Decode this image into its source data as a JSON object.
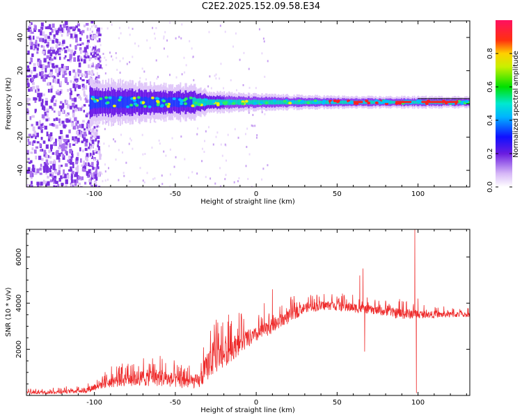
{
  "title": "C2E2.2025.152.09.58.E34",
  "colors": {
    "snr_line": "#ee2b2b",
    "axis": "#000000",
    "spec_low": "#e8c8f8",
    "spec_mid": "#7b2ee8",
    "spec_band": "#00d8c0",
    "spec_peak": "#ff2020"
  },
  "chart_data": [
    {
      "type": "heatmap",
      "name": "spectrogram",
      "xlabel": "Height of straight line (km)",
      "ylabel": "Frequency (Hz)",
      "xlim": [
        -142,
        132
      ],
      "ylim": [
        -50,
        50
      ],
      "xticks": [
        -100,
        -50,
        0,
        50,
        100
      ],
      "yticks": [
        -40,
        -20,
        0,
        20,
        40
      ],
      "grid": false,
      "description_of_structure": {
        "noise_region_x": [
          -142,
          -103
        ],
        "band_center_hz": 1,
        "band_region_x": [
          -103,
          132
        ]
      },
      "band_halfwidth_hz_by_x": [
        {
          "x": -103,
          "w": 8
        },
        {
          "x": -80,
          "w": 7
        },
        {
          "x": -60,
          "w": 6
        },
        {
          "x": -40,
          "w": 6
        },
        {
          "x": -30,
          "w": 4
        },
        {
          "x": -10,
          "w": 3
        },
        {
          "x": 20,
          "w": 2.5
        },
        {
          "x": 60,
          "w": 2
        },
        {
          "x": 100,
          "w": 2
        },
        {
          "x": 132,
          "w": 2
        }
      ],
      "colorbar": {
        "label": "Normalized spectral amplitude",
        "range": [
          0,
          1
        ],
        "ticks": [
          "0.0",
          "0.2",
          "0.4",
          "0.6",
          "0.8"
        ],
        "tick_values": [
          0,
          0.2,
          0.4,
          0.6,
          0.8
        ],
        "colormap": "rainbow (white-violet-blue-cyan-green-yellow-red-magenta)"
      }
    },
    {
      "type": "line",
      "name": "snr",
      "xlabel": "Height of straight line (km)",
      "ylabel": "SNR (10 * v/v)",
      "xlim": [
        -142,
        132
      ],
      "ylim": [
        0,
        7200
      ],
      "xticks": [
        -100,
        -50,
        0,
        50,
        100
      ],
      "yticks": [
        2000,
        4000,
        6000
      ],
      "grid": false,
      "envelope": [
        {
          "x": -142,
          "base": 50,
          "peak": 250
        },
        {
          "x": -120,
          "base": 80,
          "peak": 300
        },
        {
          "x": -105,
          "base": 100,
          "peak": 450
        },
        {
          "x": -95,
          "base": 300,
          "peak": 900
        },
        {
          "x": -80,
          "base": 400,
          "peak": 1300
        },
        {
          "x": -60,
          "base": 400,
          "peak": 1500
        },
        {
          "x": -45,
          "base": 300,
          "peak": 1100
        },
        {
          "x": -35,
          "base": 300,
          "peak": 1200
        },
        {
          "x": -28,
          "base": 800,
          "peak": 3000
        },
        {
          "x": -20,
          "base": 1200,
          "peak": 2800
        },
        {
          "x": -10,
          "base": 1800,
          "peak": 3200
        },
        {
          "x": 0,
          "base": 2300,
          "peak": 3200
        },
        {
          "x": 10,
          "base": 2700,
          "peak": 3600
        },
        {
          "x": 20,
          "base": 3100,
          "peak": 4000
        },
        {
          "x": 30,
          "base": 3600,
          "peak": 4200
        },
        {
          "x": 45,
          "base": 3700,
          "peak": 4300
        },
        {
          "x": 60,
          "base": 3600,
          "peak": 4200
        },
        {
          "x": 75,
          "base": 3500,
          "peak": 4000
        },
        {
          "x": 90,
          "base": 3300,
          "peak": 4000
        },
        {
          "x": 105,
          "base": 3350,
          "peak": 3800
        },
        {
          "x": 132,
          "base": 3400,
          "peak": 3700
        }
      ],
      "spikes": [
        {
          "x": -17,
          "y": 3500
        },
        {
          "x": 5,
          "y": 4000
        },
        {
          "x": 10,
          "y": 4600
        },
        {
          "x": 64,
          "y": 5200
        },
        {
          "x": 66,
          "y": 5500
        },
        {
          "x": 67,
          "y": 1900
        },
        {
          "x": 98,
          "y": 7200
        },
        {
          "x": 99,
          "y": 100
        },
        {
          "x": 100,
          "y": 4200
        }
      ]
    }
  ]
}
